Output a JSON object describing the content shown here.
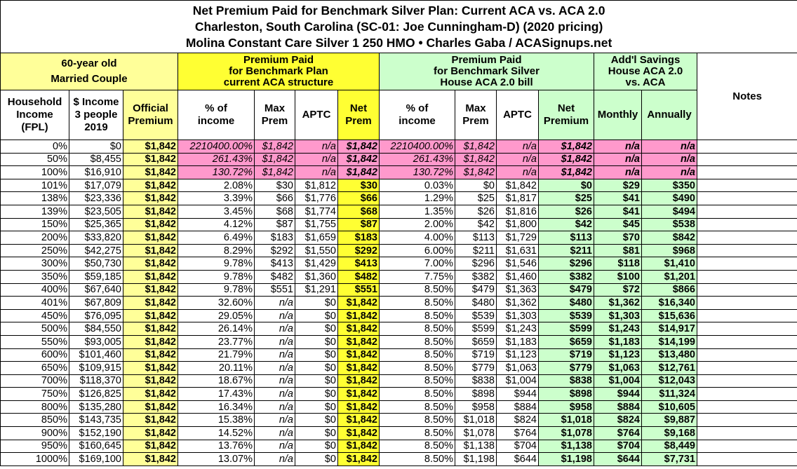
{
  "title": [
    "Net Premium Paid for Benchmark Silver Plan: Current ACA vs. ACA 2.0",
    "Charleston, South Carolina (SC-01: Joe Cunningham-D) (2020 pricing)",
    "Molina Constant Care Silver 1 250 HMO • Charles Gaba / ACASignups.net"
  ],
  "groups": [
    "60-year old\nMarried Couple",
    "Premium Paid\nfor Benchmark Plan\ncurrent ACA structure",
    "Premium Paid\nfor Benchmark Silver\nHouse ACA 2.0 bill",
    "Add'l Savings\nHouse ACA 2.0\nvs. ACA"
  ],
  "notes_header": "Notes",
  "columns": [
    "Household\nIncome\n(FPL)",
    "$ Income\n3 people\n2019",
    "Official\nPremium",
    "% of\nincome",
    "Max\nPrem",
    "APTC",
    "Net\nPrem",
    "% of\nincome",
    "Max\nPrem",
    "APTC",
    "Net\nPremium",
    "Monthly",
    "Annually"
  ],
  "rows": [
    [
      "0%",
      "$0",
      "$1,842",
      "2210400.00%",
      "$1,842",
      "n/a",
      "$1,842",
      "2210400.00%",
      "$1,842",
      "n/a",
      "$1,842",
      "n/a",
      "n/a"
    ],
    [
      "50%",
      "$8,455",
      "$1,842",
      "261.43%",
      "$1,842",
      "n/a",
      "$1,842",
      "261.43%",
      "$1,842",
      "n/a",
      "$1,842",
      "n/a",
      "n/a"
    ],
    [
      "100%",
      "$16,910",
      "$1,842",
      "130.72%",
      "$1,842",
      "n/a",
      "$1,842",
      "130.72%",
      "$1,842",
      "n/a",
      "$1,842",
      "n/a",
      "n/a"
    ],
    [
      "101%",
      "$17,079",
      "$1,842",
      "2.08%",
      "$30",
      "$1,812",
      "$30",
      "0.03%",
      "$0",
      "$1,842",
      "$0",
      "$29",
      "$350"
    ],
    [
      "138%",
      "$23,336",
      "$1,842",
      "3.39%",
      "$66",
      "$1,776",
      "$66",
      "1.29%",
      "$25",
      "$1,817",
      "$25",
      "$41",
      "$490"
    ],
    [
      "139%",
      "$23,505",
      "$1,842",
      "3.45%",
      "$68",
      "$1,774",
      "$68",
      "1.35%",
      "$26",
      "$1,816",
      "$26",
      "$41",
      "$494"
    ],
    [
      "150%",
      "$25,365",
      "$1,842",
      "4.12%",
      "$87",
      "$1,755",
      "$87",
      "2.00%",
      "$42",
      "$1,800",
      "$42",
      "$45",
      "$538"
    ],
    [
      "200%",
      "$33,820",
      "$1,842",
      "6.49%",
      "$183",
      "$1,659",
      "$183",
      "4.00%",
      "$113",
      "$1,729",
      "$113",
      "$70",
      "$842"
    ],
    [
      "250%",
      "$42,275",
      "$1,842",
      "8.29%",
      "$292",
      "$1,550",
      "$292",
      "6.00%",
      "$211",
      "$1,631",
      "$211",
      "$81",
      "$968"
    ],
    [
      "300%",
      "$50,730",
      "$1,842",
      "9.78%",
      "$413",
      "$1,429",
      "$413",
      "7.00%",
      "$296",
      "$1,546",
      "$296",
      "$118",
      "$1,410"
    ],
    [
      "350%",
      "$59,185",
      "$1,842",
      "9.78%",
      "$482",
      "$1,360",
      "$482",
      "7.75%",
      "$382",
      "$1,460",
      "$382",
      "$100",
      "$1,201"
    ],
    [
      "400%",
      "$67,640",
      "$1,842",
      "9.78%",
      "$551",
      "$1,291",
      "$551",
      "8.50%",
      "$479",
      "$1,363",
      "$479",
      "$72",
      "$866"
    ],
    [
      "401%",
      "$67,809",
      "$1,842",
      "32.60%",
      "n/a",
      "$0",
      "$1,842",
      "8.50%",
      "$480",
      "$1,362",
      "$480",
      "$1,362",
      "$16,340"
    ],
    [
      "450%",
      "$76,095",
      "$1,842",
      "29.05%",
      "n/a",
      "$0",
      "$1,842",
      "8.50%",
      "$539",
      "$1,303",
      "$539",
      "$1,303",
      "$15,636"
    ],
    [
      "500%",
      "$84,550",
      "$1,842",
      "26.14%",
      "n/a",
      "$0",
      "$1,842",
      "8.50%",
      "$599",
      "$1,243",
      "$599",
      "$1,243",
      "$14,917"
    ],
    [
      "550%",
      "$93,005",
      "$1,842",
      "23.77%",
      "n/a",
      "$0",
      "$1,842",
      "8.50%",
      "$659",
      "$1,183",
      "$659",
      "$1,183",
      "$14,199"
    ],
    [
      "600%",
      "$101,460",
      "$1,842",
      "21.79%",
      "n/a",
      "$0",
      "$1,842",
      "8.50%",
      "$719",
      "$1,123",
      "$719",
      "$1,123",
      "$13,480"
    ],
    [
      "650%",
      "$109,915",
      "$1,842",
      "20.11%",
      "n/a",
      "$0",
      "$1,842",
      "8.50%",
      "$779",
      "$1,063",
      "$779",
      "$1,063",
      "$12,761"
    ],
    [
      "700%",
      "$118,370",
      "$1,842",
      "18.67%",
      "n/a",
      "$0",
      "$1,842",
      "8.50%",
      "$838",
      "$1,004",
      "$838",
      "$1,004",
      "$12,043"
    ],
    [
      "750%",
      "$126,825",
      "$1,842",
      "17.43%",
      "n/a",
      "$0",
      "$1,842",
      "8.50%",
      "$898",
      "$944",
      "$898",
      "$944",
      "$11,324"
    ],
    [
      "800%",
      "$135,280",
      "$1,842",
      "16.34%",
      "n/a",
      "$0",
      "$1,842",
      "8.50%",
      "$958",
      "$884",
      "$958",
      "$884",
      "$10,605"
    ],
    [
      "850%",
      "$143,735",
      "$1,842",
      "15.38%",
      "n/a",
      "$0",
      "$1,842",
      "8.50%",
      "$1,018",
      "$824",
      "$1,018",
      "$824",
      "$9,887"
    ],
    [
      "900%",
      "$152,190",
      "$1,842",
      "14.52%",
      "n/a",
      "$0",
      "$1,842",
      "8.50%",
      "$1,078",
      "$764",
      "$1,078",
      "$764",
      "$9,168"
    ],
    [
      "950%",
      "$160,645",
      "$1,842",
      "13.76%",
      "n/a",
      "$0",
      "$1,842",
      "8.50%",
      "$1,138",
      "$704",
      "$1,138",
      "$704",
      "$8,449"
    ],
    [
      "1000%",
      "$169,100",
      "$1,842",
      "13.07%",
      "n/a",
      "$0",
      "$1,842",
      "8.50%",
      "$1,198",
      "$644",
      "$1,198",
      "$644",
      "$7,731"
    ]
  ]
}
